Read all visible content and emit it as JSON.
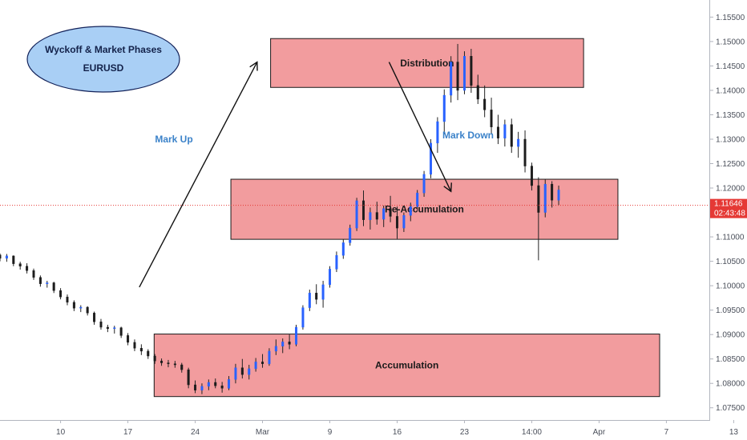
{
  "chart_data": {
    "type": "candlestick",
    "title": "Wyckoff & Market Phases",
    "symbol": "EURUSD",
    "y_ticks": [
      "1.15500",
      "1.15000",
      "1.14500",
      "1.14000",
      "1.13500",
      "1.13000",
      "1.12500",
      "1.12000",
      "1.11500",
      "1.11000",
      "1.10500",
      "1.10000",
      "1.09500",
      "1.09000",
      "1.08500",
      "1.08000",
      "1.07500"
    ],
    "x_ticks": [
      "10",
      "17",
      "24",
      "Mar",
      "9",
      "16",
      "23",
      "14:00",
      "Apr",
      "7",
      "13"
    ],
    "ylim": [
      1.0725,
      1.1585
    ],
    "current_price": "1.11646",
    "countdown": "02:43:48",
    "zones": [
      {
        "name": "Distribution",
        "low": 1.1406,
        "high": 1.1506,
        "from": 40.2,
        "to": 86.7
      },
      {
        "name": "Re-Accumulation",
        "low": 1.1095,
        "high": 1.1218,
        "from": 34.3,
        "to": 91.8
      },
      {
        "name": "Accumulation",
        "low": 1.0773,
        "high": 1.0901,
        "from": 22.9,
        "to": 98.0
      }
    ],
    "phase_labels": [
      "Mark Up",
      "Mark Down"
    ],
    "arrows": [
      {
        "x0": 20.7,
        "y0": 1.0997,
        "x1": 38.2,
        "y1": 1.1458
      },
      {
        "x0": 57.8,
        "y0": 1.1458,
        "x1": 67.0,
        "y1": 1.1193
      }
    ],
    "x_range": [
      0,
      105.5
    ],
    "candles": [
      [
        1.1063,
        1.1066,
        1.105,
        1.1056
      ],
      [
        1.1056,
        1.1065,
        1.1049,
        1.1061
      ],
      [
        1.1061,
        1.1062,
        1.104,
        1.1045
      ],
      [
        1.1045,
        1.1049,
        1.1033,
        1.104
      ],
      [
        1.104,
        1.1046,
        1.1025,
        1.1031
      ],
      [
        1.1031,
        1.1035,
        1.1012,
        1.1017
      ],
      [
        1.1017,
        1.1021,
        1.0998,
        1.1004
      ],
      [
        1.1004,
        1.101,
        1.0996,
        1.1006
      ],
      [
        1.1006,
        1.1008,
        1.0985,
        1.099
      ],
      [
        1.099,
        1.0995,
        1.0972,
        1.0977
      ],
      [
        1.0977,
        1.0982,
        1.096,
        1.0966
      ],
      [
        1.0966,
        1.097,
        1.0948,
        1.0954
      ],
      [
        1.0954,
        1.096,
        1.0946,
        1.0956
      ],
      [
        1.0956,
        1.0958,
        1.0939,
        1.0944
      ],
      [
        1.0944,
        1.0947,
        1.092,
        1.0926
      ],
      [
        1.0926,
        1.0932,
        1.091,
        1.0915
      ],
      [
        1.0915,
        1.092,
        1.0905,
        1.0912
      ],
      [
        1.0912,
        1.0918,
        1.0902,
        1.0914
      ],
      [
        1.0914,
        1.0916,
        1.0893,
        1.0898
      ],
      [
        1.0898,
        1.0903,
        1.0878,
        1.0884
      ],
      [
        1.0884,
        1.089,
        1.0866,
        1.0872
      ],
      [
        1.0872,
        1.088,
        1.0858,
        1.0866
      ],
      [
        1.0866,
        1.087,
        1.085,
        1.0856
      ],
      [
        1.0856,
        1.086,
        1.084,
        1.0846
      ],
      [
        1.0846,
        1.0851,
        1.0836,
        1.0842
      ],
      [
        1.0842,
        1.0848,
        1.0833,
        1.084
      ],
      [
        1.084,
        1.0846,
        1.0832,
        1.0838
      ],
      [
        1.0838,
        1.0842,
        1.0822,
        1.0828
      ],
      [
        1.0828,
        1.0832,
        1.079,
        1.0797
      ],
      [
        1.0797,
        1.0806,
        1.078,
        1.0786
      ],
      [
        1.0786,
        1.08,
        1.0778,
        1.0794
      ],
      [
        1.0794,
        1.0808,
        1.0786,
        1.0802
      ],
      [
        1.0802,
        1.081,
        1.079,
        1.0795
      ],
      [
        1.0795,
        1.0803,
        1.0781,
        1.079
      ],
      [
        1.079,
        1.0815,
        1.0786,
        1.0808
      ],
      [
        1.0808,
        1.084,
        1.08,
        1.0832
      ],
      [
        1.0832,
        1.085,
        1.081,
        1.0818
      ],
      [
        1.0818,
        1.0838,
        1.0808,
        1.083
      ],
      [
        1.083,
        1.0852,
        1.0824,
        1.0844
      ],
      [
        1.0844,
        1.086,
        1.0832,
        1.084
      ],
      [
        1.084,
        1.0872,
        1.0836,
        1.0866
      ],
      [
        1.0866,
        1.089,
        1.0858,
        1.0876
      ],
      [
        1.0876,
        1.0892,
        1.0862,
        1.0885
      ],
      [
        1.0885,
        1.09,
        1.087,
        1.088
      ],
      [
        1.088,
        1.092,
        1.0876,
        1.0915
      ],
      [
        1.0915,
        1.096,
        1.091,
        1.0955
      ],
      [
        1.0955,
        1.0992,
        1.0948,
        1.0985
      ],
      [
        1.0985,
        1.1003,
        1.0962,
        1.0972
      ],
      [
        1.0972,
        1.101,
        1.0955,
        1.1002
      ],
      [
        1.1002,
        1.104,
        1.0996,
        1.1034
      ],
      [
        1.1034,
        1.107,
        1.1028,
        1.1062
      ],
      [
        1.1062,
        1.1095,
        1.1055,
        1.1088
      ],
      [
        1.1088,
        1.1125,
        1.1082,
        1.1118
      ],
      [
        1.1118,
        1.118,
        1.1112,
        1.1174
      ],
      [
        1.1174,
        1.1195,
        1.1122,
        1.1135
      ],
      [
        1.1135,
        1.116,
        1.1115,
        1.115
      ],
      [
        1.115,
        1.1172,
        1.1125,
        1.1136
      ],
      [
        1.1136,
        1.1164,
        1.112,
        1.1158
      ],
      [
        1.1158,
        1.1184,
        1.113,
        1.1142
      ],
      [
        1.1142,
        1.1162,
        1.1096,
        1.1118
      ],
      [
        1.1118,
        1.115,
        1.111,
        1.1144
      ],
      [
        1.1144,
        1.117,
        1.1132,
        1.1162
      ],
      [
        1.1162,
        1.1196,
        1.1154,
        1.119
      ],
      [
        1.119,
        1.1235,
        1.1182,
        1.1228
      ],
      [
        1.1228,
        1.13,
        1.122,
        1.1292
      ],
      [
        1.1292,
        1.1345,
        1.1272,
        1.1336
      ],
      [
        1.1336,
        1.1402,
        1.131,
        1.139
      ],
      [
        1.139,
        1.147,
        1.1375,
        1.1458
      ],
      [
        1.1458,
        1.1495,
        1.138,
        1.14
      ],
      [
        1.14,
        1.148,
        1.1392,
        1.147
      ],
      [
        1.147,
        1.1485,
        1.1395,
        1.141
      ],
      [
        1.141,
        1.1432,
        1.1372,
        1.1382
      ],
      [
        1.1382,
        1.141,
        1.1345,
        1.136
      ],
      [
        1.136,
        1.1385,
        1.131,
        1.1325
      ],
      [
        1.1325,
        1.135,
        1.129,
        1.1302
      ],
      [
        1.1302,
        1.134,
        1.1285,
        1.133
      ],
      [
        1.133,
        1.1342,
        1.1272,
        1.1285
      ],
      [
        1.1285,
        1.1315,
        1.1262,
        1.13
      ],
      [
        1.13,
        1.1318,
        1.1232,
        1.1245
      ],
      [
        1.1245,
        1.1252,
        1.1195,
        1.1205
      ],
      [
        1.1205,
        1.1222,
        1.1052,
        1.115
      ],
      [
        1.115,
        1.1218,
        1.114,
        1.1208
      ],
      [
        1.1208,
        1.1214,
        1.116,
        1.1175
      ],
      [
        1.1175,
        1.1205,
        1.1165,
        1.1196
      ]
    ]
  }
}
